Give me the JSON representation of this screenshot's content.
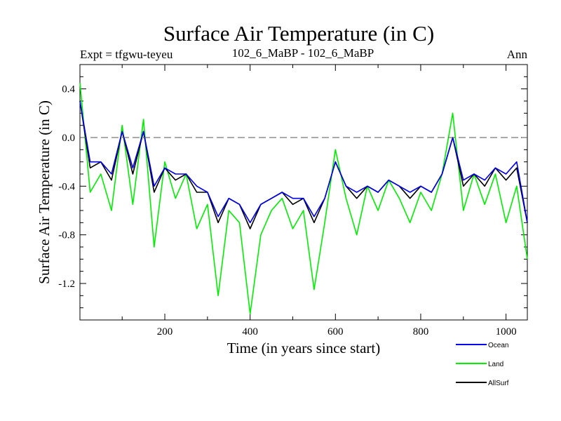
{
  "chart_data": {
    "type": "line",
    "title": "Surface Air Temperature (in C)",
    "subtitle_left": "Expt = tfgwu-teyeu",
    "subtitle_center": "102_6_MaBP - 102_6_MaBP",
    "subtitle_right": "Ann",
    "xlabel": "Time (in years since start)",
    "ylabel": "Surface Air Temperature (in C)",
    "xlim": [
      1,
      1050
    ],
    "ylim": [
      -1.5,
      0.6
    ],
    "xticks": [
      200,
      400,
      600,
      800,
      1000
    ],
    "xtick_labels": [
      "200",
      "400",
      "600",
      "800",
      "1000"
    ],
    "yticks": [
      0.4,
      0.0,
      -0.4,
      -0.8,
      -1.2
    ],
    "ytick_labels": [
      "0.4",
      "0.0",
      "-0.4",
      "-0.8",
      "-1.2"
    ],
    "reference_line": {
      "y": 0.0,
      "style": "dashed"
    },
    "grid": false,
    "legend_placement": "bottom-right",
    "series": [
      {
        "name": "Land",
        "color": "#00ee00",
        "x": [
          1,
          25,
          50,
          75,
          100,
          125,
          150,
          175,
          200,
          225,
          250,
          275,
          300,
          325,
          350,
          375,
          400,
          425,
          450,
          475,
          500,
          525,
          550,
          575,
          600,
          625,
          650,
          675,
          700,
          725,
          750,
          775,
          800,
          825,
          850,
          875,
          900,
          925,
          950,
          975,
          1000,
          1025,
          1050
        ],
        "values": [
          0.45,
          -0.45,
          -0.3,
          -0.6,
          0.1,
          -0.55,
          0.15,
          -0.9,
          -0.2,
          -0.5,
          -0.3,
          -0.75,
          -0.55,
          -1.3,
          -0.6,
          -0.7,
          -1.45,
          -0.8,
          -0.6,
          -0.5,
          -0.75,
          -0.6,
          -1.25,
          -0.7,
          -0.1,
          -0.5,
          -0.8,
          -0.4,
          -0.6,
          -0.35,
          -0.5,
          -0.7,
          -0.45,
          -0.6,
          -0.3,
          0.2,
          -0.6,
          -0.3,
          -0.55,
          -0.3,
          -0.7,
          -0.4,
          -1.0
        ]
      },
      {
        "name": "AllSurf",
        "color": "#000000",
        "x": [
          1,
          25,
          50,
          75,
          100,
          125,
          150,
          175,
          200,
          225,
          250,
          275,
          300,
          325,
          350,
          375,
          400,
          425,
          450,
          475,
          500,
          525,
          550,
          575,
          600,
          625,
          650,
          675,
          700,
          725,
          750,
          775,
          800,
          825,
          850,
          875,
          900,
          925,
          950,
          975,
          1000,
          1025,
          1050
        ],
        "values": [
          0.3,
          -0.25,
          -0.2,
          -0.35,
          0.05,
          -0.3,
          0.05,
          -0.45,
          -0.25,
          -0.35,
          -0.3,
          -0.45,
          -0.45,
          -0.7,
          -0.5,
          -0.55,
          -0.75,
          -0.55,
          -0.5,
          -0.45,
          -0.55,
          -0.5,
          -0.7,
          -0.5,
          -0.2,
          -0.4,
          -0.5,
          -0.4,
          -0.45,
          -0.35,
          -0.4,
          -0.5,
          -0.4,
          -0.45,
          -0.3,
          0.0,
          -0.4,
          -0.3,
          -0.4,
          -0.25,
          -0.35,
          -0.25,
          -0.7
        ]
      },
      {
        "name": "Ocean",
        "color": "#0000ee",
        "x": [
          1,
          25,
          50,
          75,
          100,
          125,
          150,
          175,
          200,
          225,
          250,
          275,
          300,
          325,
          350,
          375,
          400,
          425,
          450,
          475,
          500,
          525,
          550,
          575,
          600,
          625,
          650,
          675,
          700,
          725,
          750,
          775,
          800,
          825,
          850,
          875,
          900,
          925,
          950,
          975,
          1000,
          1025,
          1050
        ],
        "values": [
          0.3,
          -0.2,
          -0.2,
          -0.3,
          0.05,
          -0.25,
          0.05,
          -0.4,
          -0.25,
          -0.3,
          -0.3,
          -0.4,
          -0.45,
          -0.65,
          -0.5,
          -0.55,
          -0.7,
          -0.55,
          -0.5,
          -0.45,
          -0.5,
          -0.5,
          -0.65,
          -0.5,
          -0.2,
          -0.4,
          -0.45,
          -0.4,
          -0.45,
          -0.35,
          -0.4,
          -0.45,
          -0.4,
          -0.45,
          -0.3,
          0.0,
          -0.35,
          -0.3,
          -0.35,
          -0.25,
          -0.3,
          -0.2,
          -0.7
        ]
      }
    ],
    "legend_order": [
      "Ocean",
      "Land",
      "AllSurf"
    ]
  }
}
